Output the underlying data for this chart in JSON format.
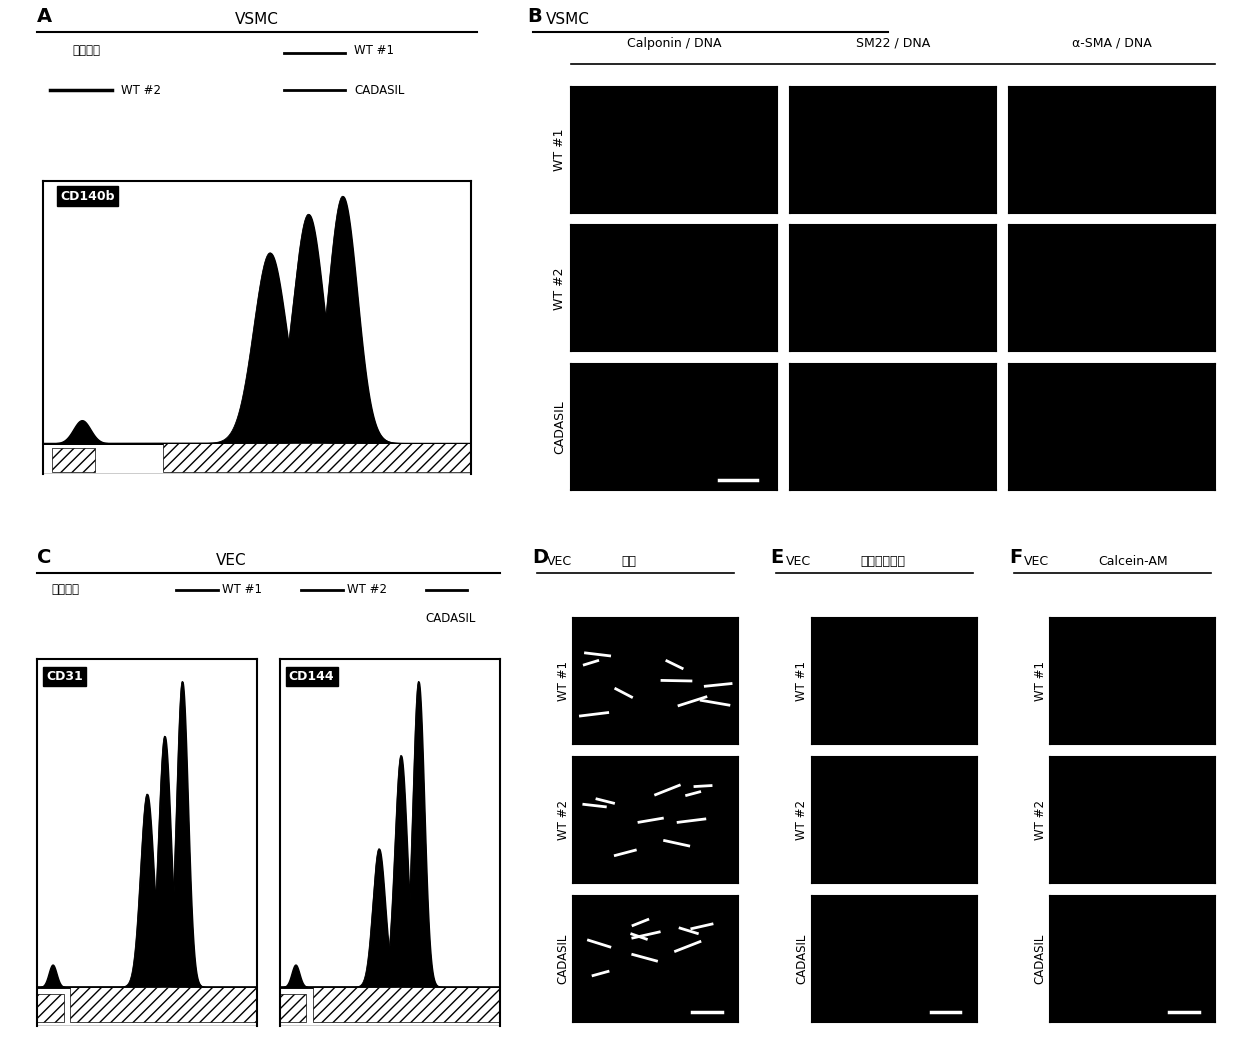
{
  "panel_A_label": "A",
  "panel_B_label": "B",
  "panel_C_label": "C",
  "panel_D_label": "D",
  "panel_E_label": "E",
  "panel_F_label": "F",
  "vsmc_title": "VSMC",
  "vec_title": "VEC",
  "legend_isotype": "同型对照",
  "legend_wt1": "WT #1",
  "legend_wt2": "WT #2",
  "legend_cadasil": "CADASIL",
  "cd140b_label": "CD140b",
  "cd31_label": "CD31",
  "cd144_label": "CD144",
  "panel_B_title": "VSMC",
  "panel_B_cols": [
    "Calponin / DNA",
    "SM22 / DNA",
    "α-SMA / DNA"
  ],
  "panel_B_rows": [
    "WT #1",
    "WT #2",
    "CADASIL"
  ],
  "panel_D_title": "VEC",
  "panel_D_subtitle": "明场",
  "panel_E_title": "VEC",
  "panel_E_subtitle": "低密度脂蛋白",
  "panel_F_title": "VEC",
  "panel_F_subtitle": "Calcein-AM",
  "panel_DEF_rows": [
    "WT #1",
    "WT #2",
    "CADASIL"
  ],
  "bg_color": "#ffffff",
  "black": "#000000"
}
